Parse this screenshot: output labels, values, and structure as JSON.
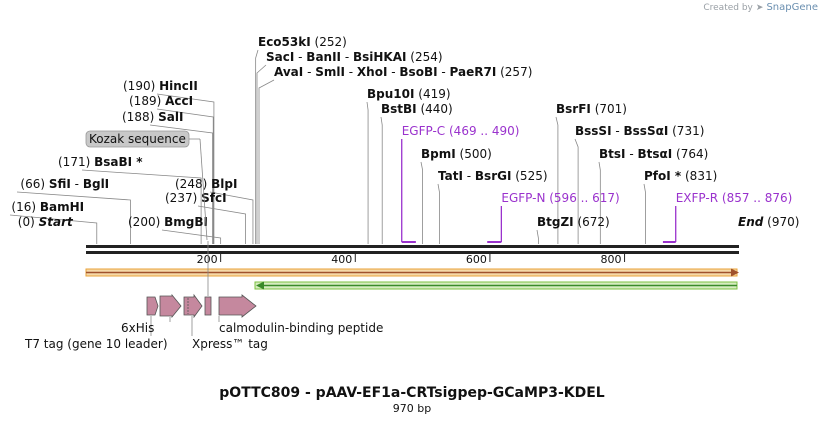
{
  "credit": {
    "prefix": "Created by",
    "brand": "SnapGene"
  },
  "title": "pOTTC809 - pAAV-EF1a-CRTsigpep-GCaMP3-KDEL",
  "size_label": "970 bp",
  "total_length": 970,
  "enzymes": [
    {
      "id": "e0",
      "pos": 0,
      "name": "Start",
      "italic": true,
      "line": false
    },
    {
      "id": "e1",
      "pos": 16,
      "name": "BamHI"
    },
    {
      "id": "e2",
      "pos": 66,
      "names": [
        "SfiI",
        "BglI"
      ]
    },
    {
      "id": "e3",
      "pos": 171,
      "name": "BsaBI *"
    },
    {
      "id": "e4",
      "pos": 188,
      "name": "SalI"
    },
    {
      "id": "e5",
      "pos": 189,
      "name": "AccI"
    },
    {
      "id": "e6",
      "pos": 190,
      "name": "HincII"
    },
    {
      "id": "e7",
      "pos": 200,
      "name": "BmgBI"
    },
    {
      "id": "e8",
      "pos": 237,
      "name": "SfcI"
    },
    {
      "id": "e9",
      "pos": 248,
      "name": "BlpI"
    },
    {
      "id": "e10",
      "pos": 252,
      "name": "Eco53kI"
    },
    {
      "id": "e11",
      "pos": 254,
      "names": [
        "SacI",
        "BanII",
        "BsiHKAI"
      ]
    },
    {
      "id": "e12",
      "pos": 257,
      "names": [
        "AvaI",
        "SmlI",
        "XhoI",
        "BsoBI",
        "PaeR7I"
      ]
    },
    {
      "id": "e13",
      "pos": 419,
      "name": "Bpu10I"
    },
    {
      "id": "e14",
      "pos": 440,
      "name": "BstBI"
    },
    {
      "id": "e15",
      "pos": 500,
      "name": "BpmI"
    },
    {
      "id": "e16",
      "pos": 525,
      "names": [
        "TatI",
        "BsrGI"
      ]
    },
    {
      "id": "e17",
      "pos": 672,
      "name": "BtgZI"
    },
    {
      "id": "e18",
      "pos": 701,
      "name": "BsrFI"
    },
    {
      "id": "e19",
      "pos": 731,
      "names": [
        "BssSI",
        "BssSαI"
      ]
    },
    {
      "id": "e20",
      "pos": 764,
      "names": [
        "BtsI",
        "BtsαI"
      ]
    },
    {
      "id": "e21",
      "pos": 831,
      "name": "PfoI *"
    },
    {
      "id": "e22",
      "pos": 970,
      "name": "End",
      "italic": true,
      "line": false
    }
  ],
  "primers": [
    {
      "id": "p1",
      "name": "EGFP-C",
      "range": "(469 .. 490)",
      "start": 469,
      "end": 490,
      "direction": "forward"
    },
    {
      "id": "p2",
      "name": "EGFP-N",
      "range": "(596 .. 617)",
      "start": 596,
      "end": 617,
      "direction": "reverse"
    },
    {
      "id": "p3",
      "name": "EXFP-R",
      "range": "(857 .. 876)",
      "start": 857,
      "end": 876,
      "direction": "reverse"
    }
  ],
  "feature_label": "Kozak sequence",
  "ruler": {
    "ticks": [
      200,
      400,
      600,
      800
    ]
  },
  "features": [
    {
      "name": "T7 tag (gene 10 leader)"
    },
    {
      "name": "6xHis"
    },
    {
      "name": "Xpress™ tag"
    },
    {
      "name": "calmodulin-binding peptide"
    }
  ],
  "colors": {
    "primer": "#9a32cd",
    "orange": "#e8a23a",
    "green": "#7cc242",
    "feature": "#c5889e",
    "line": "#888888"
  }
}
